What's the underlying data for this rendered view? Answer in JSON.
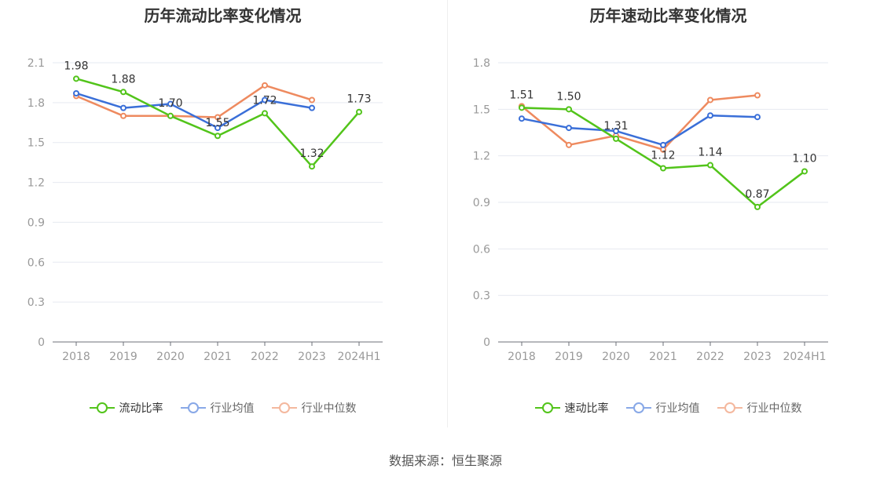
{
  "source": "数据来源：恒生聚源",
  "chart_data": [
    {
      "type": "line",
      "title": "历年流动比率变化情况",
      "categories": [
        "2018",
        "2019",
        "2020",
        "2021",
        "2022",
        "2023",
        "2024H1"
      ],
      "ylim": [
        0,
        2.1
      ],
      "yticks": [
        "0",
        "0.3",
        "0.6",
        "0.9",
        "1.2",
        "1.5",
        "1.8",
        "2.1"
      ],
      "grid": true,
      "legend_position": "bottom",
      "series": [
        {
          "name": "流动比率",
          "color": "#52c41a",
          "labeled": true,
          "values": [
            1.98,
            1.88,
            1.7,
            1.55,
            1.72,
            1.32,
            1.73
          ],
          "labels": [
            "1.98",
            "1.88",
            "1.70",
            "1.55",
            "1.72",
            "1.32",
            "1.73"
          ]
        },
        {
          "name": "行业均值",
          "color": "#3a6fd8",
          "labeled": false,
          "values": [
            1.87,
            1.76,
            1.79,
            1.61,
            1.82,
            1.76,
            null
          ]
        },
        {
          "name": "行业中位数",
          "color": "#ee8a5f",
          "labeled": false,
          "values": [
            1.85,
            1.7,
            1.7,
            1.69,
            1.93,
            1.82,
            null
          ]
        }
      ]
    },
    {
      "type": "line",
      "title": "历年速动比率变化情况",
      "categories": [
        "2018",
        "2019",
        "2020",
        "2021",
        "2022",
        "2023",
        "2024H1"
      ],
      "ylim": [
        0,
        1.8
      ],
      "yticks": [
        "0",
        "0.3",
        "0.6",
        "0.9",
        "1.2",
        "1.5",
        "1.8"
      ],
      "grid": true,
      "legend_position": "bottom",
      "series": [
        {
          "name": "速动比率",
          "color": "#52c41a",
          "labeled": true,
          "values": [
            1.51,
            1.5,
            1.31,
            1.12,
            1.14,
            0.87,
            1.1
          ],
          "labels": [
            "1.51",
            "1.50",
            "1.31",
            "1.12",
            "1.14",
            "0.87",
            "1.10"
          ]
        },
        {
          "name": "行业均值",
          "color": "#3a6fd8",
          "labeled": false,
          "values": [
            1.44,
            1.38,
            1.36,
            1.27,
            1.46,
            1.45,
            null
          ]
        },
        {
          "name": "行业中位数",
          "color": "#ee8a5f",
          "labeled": false,
          "values": [
            1.52,
            1.27,
            1.33,
            1.24,
            1.56,
            1.59,
            null
          ]
        }
      ]
    }
  ]
}
